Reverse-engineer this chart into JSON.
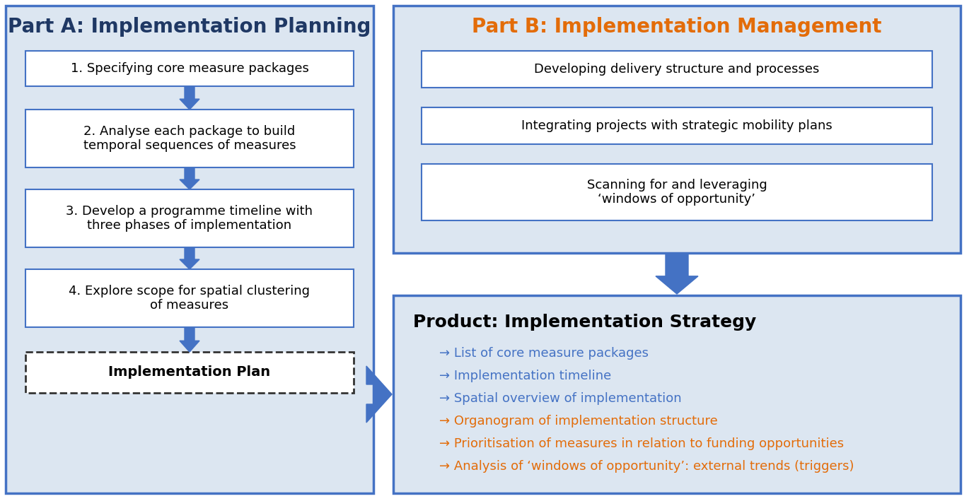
{
  "fig_width": 13.7,
  "fig_height": 7.09,
  "bg_color": "#ffffff",
  "panel_bg": "#dce6f1",
  "panel_border_color": "#4472c4",
  "part_a_title": "Part A: Implementation Planning",
  "part_b_title": "Part B: Implementation Management",
  "part_a_title_color": "#1f3864",
  "part_b_title_color": "#e36c09",
  "box_border_color": "#4472c4",
  "box_bg": "#ffffff",
  "box_text_color": "#000000",
  "arrow_color": "#4472c4",
  "part_a_steps": [
    "1. Specifying core measure packages",
    "2. Analyse each package to build\ntemporal sequences of measures",
    "3. Develop a programme timeline with\nthree phases of implementation",
    "4. Explore scope for spatial clustering\nof measures"
  ],
  "impl_plan_text": "Implementation Plan",
  "part_b_items": [
    "Developing delivery structure and processes",
    "Integrating projects with strategic mobility plans",
    "Scanning for and leveraging\n‘windows of opportunity’"
  ],
  "product_title": "Product: Implementation Strategy",
  "product_title_color": "#000000",
  "product_items_blue": [
    "→ List of core measure packages",
    "→ Implementation timeline",
    "→ Spatial overview of implementation"
  ],
  "product_items_orange": [
    "→ Organogram of implementation structure",
    "→ Prioritisation of measures in relation to funding opportunities",
    "→ Analysis of ‘windows of opportunity’: external trends (triggers)"
  ],
  "blue_color": "#4472c4",
  "orange_color": "#e36c09",
  "dark_color": "#333333"
}
